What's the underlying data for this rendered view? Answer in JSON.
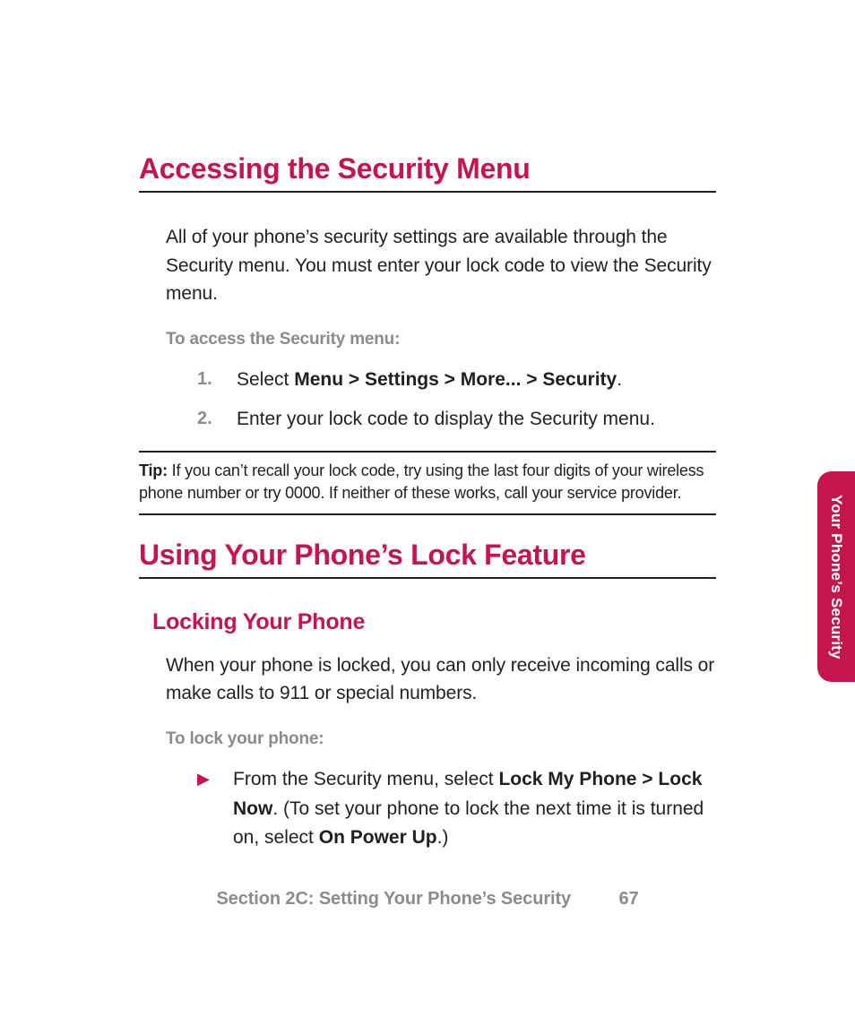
{
  "colors": {
    "accent": "#c4154c",
    "body_text": "#231f20",
    "muted_text": "#8a8b8d",
    "background": "#ffffff"
  },
  "typography": {
    "h1_fontsize_pt": 24,
    "h2_fontsize_pt": 19,
    "body_fontsize_pt": 16,
    "footer_fontsize_pt": 15,
    "tip_fontsize_pt": 14
  },
  "heading1": "Accessing the Security Menu",
  "intro1": "All of your phone’s security settings are available through the Security menu. You must enter your lock code to view the Security menu.",
  "procedure1_label": "To access the Security menu:",
  "steps1": {
    "s1_pre": "Select ",
    "s1_bold": "Menu > Settings > More... > Security",
    "s1_post": ".",
    "s2": "Enter your lock code to display the Security menu."
  },
  "tip": {
    "label": "Tip:",
    "text": " If you can’t recall your lock code, try using the last four digits of your wireless phone number or try 0000. If neither of these works, call your service provider."
  },
  "heading2": "Using Your Phone’s Lock Feature",
  "subheading2": "Locking Your Phone",
  "intro2": "When your phone is locked, you can only receive incoming calls or make calls to 911 or special numbers.",
  "procedure2_label": "To lock your phone:",
  "bullet": {
    "marker": "▶",
    "pre": "From the Security menu, select ",
    "bold1": "Lock My Phone > Lock Now",
    "mid": ". (To set your phone to lock the next time it is turned on, select ",
    "bold2": "On Power Up",
    "post": ".)"
  },
  "footer": {
    "section": "Section 2C: Setting Your Phone’s Security",
    "page": "67"
  },
  "sidetab": "Your Phone’s Security"
}
